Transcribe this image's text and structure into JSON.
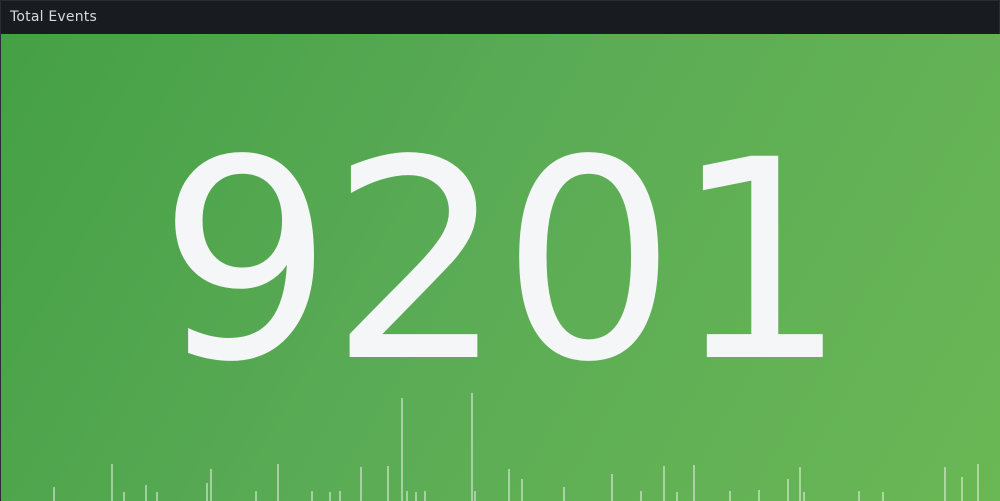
{
  "panel": {
    "title": "Total Events"
  },
  "stat": {
    "value": "9201"
  },
  "colors": {
    "background_start": "#45a045",
    "background_end": "#6ab755",
    "value_text": "#f5f6f8",
    "sparkline": "#ffffff"
  }
}
